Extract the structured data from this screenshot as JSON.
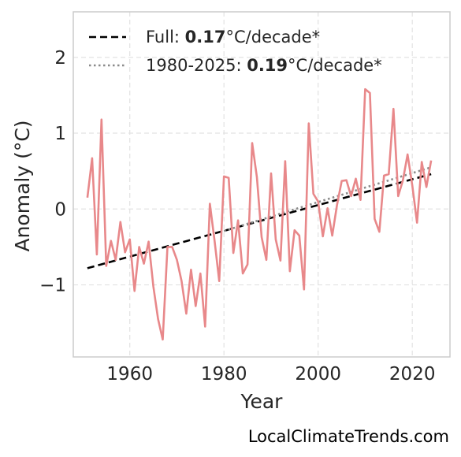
{
  "colors": {
    "series": "#e8888a",
    "trend_full": "#000000",
    "trend_recent": "#8a8a8a",
    "grid": "#e2e2e2",
    "frame": "#cccccc"
  },
  "chart_data": {
    "type": "line",
    "xlabel": "Year",
    "ylabel": "Anomaly (°C)",
    "xlim": [
      1948,
      2028
    ],
    "ylim": [
      -1.95,
      2.6
    ],
    "x_ticks": [
      1960,
      1980,
      2000,
      2020
    ],
    "x_tick_labels": [
      "1960",
      "1980",
      "2000",
      "2020"
    ],
    "y_ticks": [
      -1,
      0,
      1,
      2
    ],
    "y_tick_labels": [
      "−1",
      "0",
      "1",
      "2"
    ],
    "grid": true,
    "legend_position": "top-left",
    "series": [
      {
        "x": [
          1951,
          1952,
          1953,
          1954,
          1955,
          1956,
          1957,
          1958,
          1959,
          1960,
          1961,
          1962,
          1963,
          1964,
          1965,
          1966,
          1967,
          1968,
          1969,
          1970,
          1971,
          1972,
          1973,
          1974,
          1975,
          1976,
          1977,
          1978,
          1979,
          1980,
          1981,
          1982,
          1983,
          1984,
          1985,
          1986,
          1987,
          1988,
          1989,
          1990,
          1991,
          1992,
          1993,
          1994,
          1995,
          1996,
          1997,
          1998,
          1999,
          2000,
          2001,
          2002,
          2003,
          2004,
          2005,
          2006,
          2007,
          2008,
          2009,
          2010,
          2011,
          2012,
          2013,
          2014,
          2015,
          2016,
          2017,
          2018,
          2019,
          2020,
          2021,
          2022,
          2023,
          2024
        ],
        "y": [
          0.15,
          0.67,
          -0.6,
          1.18,
          -0.75,
          -0.42,
          -0.67,
          -0.17,
          -0.57,
          -0.4,
          -1.08,
          -0.5,
          -0.72,
          -0.43,
          -1.02,
          -1.45,
          -1.72,
          -0.5,
          -0.5,
          -0.67,
          -0.95,
          -1.38,
          -0.8,
          -1.28,
          -0.85,
          -1.55,
          0.07,
          -0.42,
          -0.95,
          0.43,
          0.41,
          -0.58,
          -0.15,
          -0.85,
          -0.73,
          0.87,
          0.42,
          -0.37,
          -0.67,
          0.47,
          -0.4,
          -0.68,
          0.63,
          -0.82,
          -0.28,
          -0.35,
          -1.06,
          1.13,
          0.2,
          0.1,
          -0.36,
          0.01,
          -0.35,
          0.05,
          0.37,
          0.38,
          0.17,
          0.4,
          0.12,
          1.58,
          1.53,
          -0.13,
          -0.3,
          0.44,
          0.46,
          1.32,
          0.17,
          0.38,
          0.72,
          0.31,
          -0.18,
          0.62,
          0.29,
          0.64
        ]
      }
    ],
    "trend_lines": [
      {
        "style": "dashed",
        "x": [
          1951,
          2024
        ],
        "y": [
          -0.78,
          0.46
        ]
      },
      {
        "style": "dotted",
        "x": [
          1980,
          2024
        ],
        "y": [
          -0.29,
          0.55
        ]
      }
    ],
    "legend": [
      {
        "style": "dashed",
        "prefix": "Full: ",
        "value": "0.17",
        "suffix": "°C/decade*"
      },
      {
        "style": "dotted",
        "prefix": "1980-2025: ",
        "value": "0.19",
        "suffix": "°C/decade*"
      }
    ]
  },
  "watermark": "LocalClimateTrends.com"
}
